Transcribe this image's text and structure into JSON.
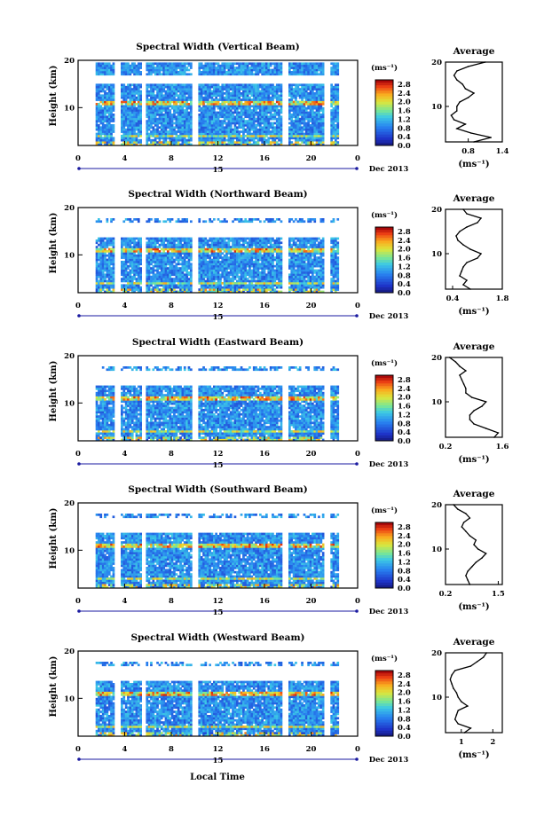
{
  "figure": {
    "bottom_label": "Local Time",
    "date_label": "Dec 2013",
    "date_day": "15"
  },
  "chart_data": [
    {
      "type": "heatmap",
      "title": "Spectral Width (Vertical Beam)",
      "ylabel": "Height (km)",
      "xlim": [
        0,
        24
      ],
      "ylim": [
        2,
        20
      ],
      "x_ticks": [
        "0",
        "4",
        "8",
        "12",
        "16",
        "20",
        "0"
      ],
      "y_ticks": [
        "10",
        "20"
      ],
      "colorbar": {
        "label": "(ms⁻¹)",
        "ticks": [
          "2.8",
          "2.4",
          "2.0",
          "1.6",
          "1.2",
          "0.8",
          "0.4",
          "0.0"
        ],
        "range": [
          0,
          3.0
        ]
      },
      "profile": {
        "title": "Average",
        "xlabel": "(ms⁻¹)",
        "xlim": [
          0.4,
          1.4
        ],
        "x_ticks": [
          "0.8",
          "1.4"
        ],
        "y_ticks": [
          "10",
          "20"
        ],
        "heights": [
          2,
          3,
          4,
          5,
          6,
          7,
          8,
          9,
          10,
          11,
          12,
          13,
          14,
          15,
          16,
          17,
          18,
          19,
          20
        ],
        "values": [
          0.9,
          1.2,
          0.85,
          0.6,
          0.75,
          0.55,
          0.5,
          0.6,
          0.6,
          0.65,
          0.8,
          0.9,
          0.75,
          0.7,
          0.6,
          0.55,
          0.6,
          0.8,
          1.1
        ]
      }
    },
    {
      "type": "heatmap",
      "title": "Spectral Width (Northward Beam)",
      "ylabel": "Height (km)",
      "xlim": [
        0,
        24
      ],
      "ylim": [
        2,
        20
      ],
      "x_ticks": [
        "0",
        "4",
        "8",
        "12",
        "16",
        "20",
        "0"
      ],
      "y_ticks": [
        "10",
        "20"
      ],
      "colorbar": {
        "label": "(ms⁻¹)",
        "ticks": [
          "2.8",
          "2.4",
          "2.0",
          "1.6",
          "1.2",
          "0.8",
          "0.4",
          "0.0"
        ],
        "range": [
          0,
          3.0
        ]
      },
      "profile": {
        "title": "Average",
        "xlabel": "(ms⁻¹)",
        "xlim": [
          0.2,
          1.8
        ],
        "x_ticks": [
          "0.4",
          "1.8"
        ],
        "y_ticks": [
          "10",
          "20"
        ],
        "heights": [
          2,
          3,
          4,
          5,
          6,
          7,
          8,
          9,
          10,
          11,
          12,
          13,
          14,
          15,
          16,
          17,
          18,
          19,
          20
        ],
        "values": [
          0.9,
          0.7,
          0.8,
          0.6,
          0.65,
          0.7,
          0.8,
          1.1,
          1.2,
          0.9,
          0.7,
          0.55,
          0.5,
          0.6,
          0.8,
          1.1,
          1.2,
          0.8,
          0.7
        ]
      }
    },
    {
      "type": "heatmap",
      "title": "Spectral Width (Eastward Beam)",
      "ylabel": "Height (km)",
      "xlim": [
        0,
        24
      ],
      "ylim": [
        2,
        20
      ],
      "x_ticks": [
        "0",
        "4",
        "8",
        "12",
        "16",
        "20",
        "0"
      ],
      "y_ticks": [
        "10",
        "20"
      ],
      "colorbar": {
        "label": "(ms⁻¹)",
        "ticks": [
          "2.8",
          "2.4",
          "2.0",
          "1.6",
          "1.2",
          "0.8",
          "0.4",
          "0.0"
        ],
        "range": [
          0,
          3.0
        ]
      },
      "profile": {
        "title": "Average",
        "xlabel": "(ms⁻¹)",
        "xlim": [
          0.2,
          1.6
        ],
        "x_ticks": [
          "0.2",
          "1.6"
        ],
        "y_ticks": [
          "10",
          "20"
        ],
        "heights": [
          2,
          3,
          4,
          5,
          6,
          7,
          8,
          9,
          10,
          11,
          12,
          13,
          14,
          15,
          16,
          17,
          18,
          19,
          20
        ],
        "values": [
          1.4,
          1.5,
          1.2,
          0.9,
          0.8,
          0.8,
          0.9,
          1.1,
          1.2,
          0.85,
          0.7,
          0.7,
          0.65,
          0.6,
          0.55,
          0.7,
          0.55,
          0.45,
          0.3
        ]
      }
    },
    {
      "type": "heatmap",
      "title": "Spectral Width (Southward Beam)",
      "ylabel": "Height (km)",
      "xlim": [
        0,
        24
      ],
      "ylim": [
        2,
        20
      ],
      "x_ticks": [
        "0",
        "4",
        "8",
        "12",
        "16",
        "20",
        "0"
      ],
      "y_ticks": [
        "10",
        "20"
      ],
      "colorbar": {
        "label": "(ms⁻¹)",
        "ticks": [
          "2.8",
          "2.4",
          "2.0",
          "1.6",
          "1.2",
          "0.8",
          "0.4",
          "0.0"
        ],
        "range": [
          0,
          3.0
        ]
      },
      "profile": {
        "title": "Average",
        "xlabel": "(ms⁻¹)",
        "xlim": [
          0.2,
          1.6
        ],
        "x_ticks": [
          "0.2",
          "1.5"
        ],
        "y_ticks": [
          "10",
          "20"
        ],
        "heights": [
          2,
          3,
          4,
          5,
          6,
          7,
          8,
          9,
          10,
          11,
          12,
          13,
          14,
          15,
          16,
          17,
          18,
          19,
          20
        ],
        "values": [
          0.8,
          0.75,
          0.7,
          0.75,
          0.85,
          0.95,
          1.1,
          1.2,
          1.0,
          0.9,
          0.95,
          0.8,
          0.7,
          0.6,
          0.65,
          0.8,
          0.7,
          0.5,
          0.4
        ]
      }
    },
    {
      "type": "heatmap",
      "title": "Spectral Width (Westward Beam)",
      "ylabel": "Height (km)",
      "xlim": [
        0,
        24
      ],
      "ylim": [
        2,
        20
      ],
      "x_ticks": [
        "0",
        "4",
        "8",
        "12",
        "16",
        "20",
        "0"
      ],
      "y_ticks": [
        "10",
        "20"
      ],
      "colorbar": {
        "label": "(ms⁻¹)",
        "ticks": [
          "2.8",
          "2.4",
          "2.0",
          "1.6",
          "1.2",
          "0.8",
          "0.4",
          "0.0"
        ],
        "range": [
          0,
          3.0
        ]
      },
      "profile": {
        "title": "Average",
        "xlabel": "(ms⁻¹)",
        "xlim": [
          0.5,
          2.3
        ],
        "x_ticks": [
          "1",
          "2"
        ],
        "y_ticks": [
          "10",
          "20"
        ],
        "heights": [
          2,
          3,
          4,
          5,
          6,
          7,
          8,
          9,
          10,
          11,
          12,
          13,
          14,
          15,
          16,
          17,
          18,
          19,
          20
        ],
        "values": [
          1.1,
          1.3,
          0.9,
          0.8,
          0.85,
          0.9,
          1.2,
          1.0,
          0.9,
          0.85,
          0.75,
          0.7,
          0.65,
          0.7,
          0.8,
          1.3,
          1.5,
          1.7,
          1.8
        ]
      }
    }
  ]
}
